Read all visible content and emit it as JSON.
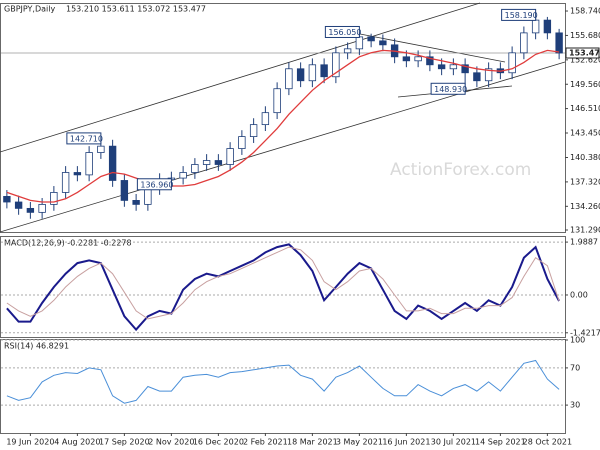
{
  "chart_data": [
    {
      "type": "candlestick",
      "title": "GBPJPY,Daily",
      "subtitle": "153.210 153.611 153.072 153.477",
      "watermark": "ActionForex.com",
      "categories": [
        null,
        null,
        "19 Jun 2020",
        null,
        null,
        null,
        "4 Aug 2020",
        null,
        null,
        null,
        "17 Sep 2020",
        null,
        null,
        null,
        "2 Nov 2020",
        null,
        null,
        null,
        "16 Dec 2020",
        null,
        null,
        null,
        "2 Feb 2021",
        null,
        null,
        null,
        "18 Mar 2021",
        null,
        null,
        null,
        "3 May 2021",
        null,
        null,
        null,
        "16 Jun 2021",
        null,
        null,
        null,
        "30 Jul 2021",
        null,
        null,
        null,
        "14 Sep 2021",
        null,
        null,
        null,
        "28 Oct 2021",
        null
      ],
      "open": [
        135.5,
        134.8,
        134.0,
        133.5,
        134.5,
        136.0,
        138.5,
        138.2,
        141.0,
        141.8,
        137.5,
        135.0,
        134.5,
        136.5,
        137.6,
        137.8,
        138.5,
        139.5,
        140.0,
        139.5,
        141.5,
        143.0,
        144.5,
        146.0,
        149.0,
        151.5,
        150.0,
        152.0,
        150.5,
        153.5,
        154.0,
        155.5,
        155.0,
        154.5,
        153.0,
        152.5,
        153.0,
        152.0,
        151.5,
        152.0,
        151.0,
        150.0,
        151.5,
        151.0,
        153.5,
        156.0,
        157.6,
        156.0
      ],
      "high": [
        136.3,
        135.6,
        134.8,
        135.3,
        136.8,
        139.3,
        139.3,
        141.8,
        142.71,
        142.6,
        138.3,
        135.8,
        137.3,
        138.4,
        138.6,
        139.3,
        140.3,
        140.8,
        140.8,
        142.3,
        143.8,
        145.3,
        146.8,
        149.8,
        152.3,
        152.3,
        152.8,
        152.8,
        154.3,
        154.8,
        156.05,
        155.9,
        155.8,
        155.3,
        153.8,
        153.8,
        153.8,
        152.8,
        152.8,
        152.8,
        151.8,
        152.3,
        152.3,
        154.3,
        156.8,
        158.19,
        158.0,
        156.5
      ],
      "low": [
        134.0,
        133.2,
        132.7,
        132.7,
        133.7,
        135.2,
        137.4,
        137.4,
        140.2,
        136.7,
        134.2,
        133.7,
        133.7,
        135.7,
        136.96,
        137.0,
        137.7,
        138.7,
        138.7,
        138.7,
        140.7,
        142.2,
        143.7,
        145.2,
        148.2,
        149.2,
        149.2,
        149.7,
        149.7,
        152.7,
        153.2,
        154.2,
        153.7,
        152.2,
        151.7,
        151.7,
        151.2,
        150.7,
        150.7,
        148.93,
        149.2,
        149.2,
        150.2,
        150.2,
        152.7,
        155.2,
        155.2,
        152.7
      ],
      "close": [
        134.8,
        134.0,
        133.5,
        134.5,
        136.0,
        138.5,
        138.2,
        141.0,
        141.8,
        137.5,
        135.0,
        134.5,
        136.5,
        137.6,
        137.8,
        138.5,
        139.5,
        140.0,
        139.5,
        141.5,
        143.0,
        144.5,
        146.0,
        149.0,
        151.5,
        150.0,
        152.0,
        150.5,
        153.5,
        154.0,
        155.5,
        155.0,
        154.5,
        153.0,
        152.5,
        153.0,
        152.0,
        151.5,
        152.0,
        151.0,
        150.0,
        151.5,
        151.0,
        153.5,
        156.0,
        157.6,
        156.0,
        153.477
      ],
      "candle_color": "#1f3f7a",
      "series": [
        {
          "color": "#e03c3c",
          "values": [
            136,
            135.5,
            135,
            134.8,
            134.8,
            135.2,
            136,
            137,
            138,
            138.5,
            138.3,
            137.8,
            137.3,
            137,
            136.8,
            136.8,
            137,
            137.5,
            138,
            138.8,
            139.8,
            141,
            142.5,
            144,
            145.8,
            147.3,
            148.8,
            150,
            151,
            152,
            153,
            153.5,
            153.8,
            153.7,
            153.5,
            153.2,
            152.8,
            152.5,
            152.2,
            151.8,
            151.5,
            151.3,
            151.2,
            151.5,
            152.3,
            153.3,
            153.8,
            153.6
          ]
        }
      ],
      "last_price": {
        "value": 153.477,
        "label": "153.477"
      },
      "annotations": [
        {
          "value": 142.71,
          "label": "142.710"
        },
        {
          "value": 136.96,
          "label": "136.960"
        },
        {
          "value": 156.05,
          "label": "156.050"
        },
        {
          "value": 148.93,
          "label": "148.930"
        },
        {
          "value": 158.19,
          "label": "158.190"
        }
      ],
      "ylim": [
        131.04,
        159.62
      ],
      "yticks": [
        {
          "value": 131.29,
          "label": "131.290"
        },
        {
          "value": 134.26,
          "label": "134.260"
        },
        {
          "value": 137.32,
          "label": "137.320"
        },
        {
          "value": 140.38,
          "label": "140.380"
        },
        {
          "value": 143.45,
          "label": "143.450"
        },
        {
          "value": 146.51,
          "label": "146.510"
        },
        {
          "value": 149.56,
          "label": "149.560"
        },
        {
          "value": 152.62,
          "label": "152.620"
        },
        {
          "value": 155.68,
          "label": "155.680"
        },
        {
          "value": 158.74,
          "label": "158.740"
        }
      ]
    },
    {
      "type": "line",
      "title": "MACD(12,26,9) -0.2281 -0.2278",
      "series": [
        {
          "color": "#1a1a8c",
          "width": 2,
          "values": [
            -0.5,
            -1.0,
            -1.0,
            -0.3,
            0.3,
            0.8,
            1.2,
            1.3,
            1.2,
            0.2,
            -0.8,
            -1.3,
            -0.8,
            -0.6,
            -0.7,
            0.2,
            0.6,
            0.8,
            0.7,
            0.9,
            1.1,
            1.3,
            1.6,
            1.8,
            1.9,
            1.5,
            0.9,
            -0.2,
            0.3,
            0.8,
            1.2,
            1.0,
            0.2,
            -0.6,
            -0.9,
            -0.4,
            -0.6,
            -0.9,
            -0.6,
            -0.3,
            -0.6,
            -0.2,
            -0.4,
            0.3,
            1.4,
            1.8,
            0.6,
            -0.2281
          ]
        },
        {
          "color": "#c8a0a0",
          "width": 1,
          "values": [
            -0.3,
            -0.6,
            -0.8,
            -0.6,
            -0.2,
            0.3,
            0.7,
            1.0,
            1.2,
            0.8,
            0.1,
            -0.6,
            -0.9,
            -0.8,
            -0.7,
            -0.3,
            0.2,
            0.5,
            0.7,
            0.8,
            1.0,
            1.2,
            1.4,
            1.6,
            1.8,
            1.7,
            1.3,
            0.5,
            0.2,
            0.5,
            0.9,
            1.0,
            0.6,
            0.0,
            -0.6,
            -0.6,
            -0.5,
            -0.7,
            -0.7,
            -0.5,
            -0.5,
            -0.4,
            -0.4,
            -0.1,
            0.7,
            1.4,
            1.1,
            -0.2278
          ]
        }
      ],
      "ylim": [
        -1.58,
        2.18
      ],
      "yticks": [
        1.9887,
        {
          "value": 0,
          "label": "0.00"
        },
        -1.4217
      ]
    },
    {
      "type": "line",
      "title": "RSI(14) 46.8291",
      "series": [
        {
          "color": "#4a8fd8",
          "width": 1,
          "values": [
            40,
            35,
            38,
            55,
            62,
            65,
            64,
            70,
            68,
            40,
            32,
            35,
            50,
            45,
            45,
            60,
            62,
            63,
            60,
            65,
            66,
            68,
            70,
            72,
            73,
            62,
            58,
            45,
            60,
            65,
            72,
            60,
            48,
            40,
            40,
            52,
            45,
            40,
            48,
            52,
            45,
            55,
            45,
            60,
            75,
            78,
            58,
            46.8291
          ]
        }
      ],
      "ylim": [
        0,
        100
      ],
      "yticks": [
        100,
        70,
        30
      ]
    }
  ]
}
